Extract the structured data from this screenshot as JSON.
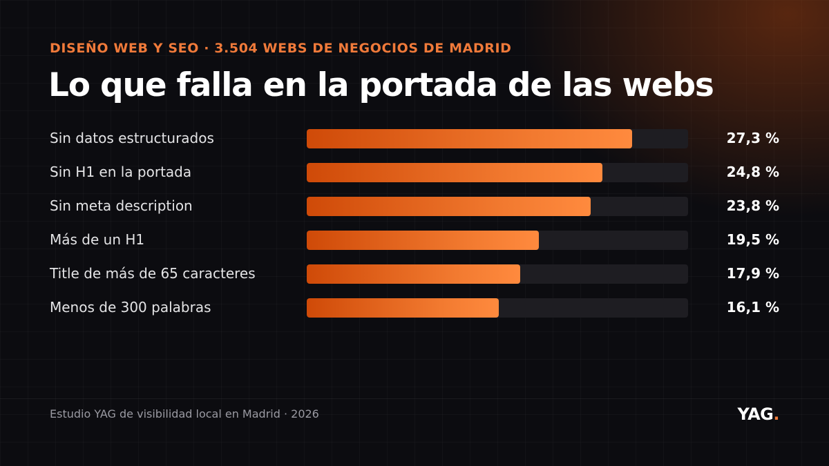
{
  "header": {
    "eyebrow": "DISEÑO WEB Y SEO · 3.504 WEBS DE NEGOCIOS DE MADRID",
    "title": "Lo que falla en la portada de las webs"
  },
  "chart_data": {
    "type": "bar",
    "orientation": "horizontal",
    "title": "Lo que falla en la portada de las webs",
    "subtitle": "DISEÑO WEB Y SEO · 3.504 WEBS DE NEGOCIOS DE MADRID",
    "categories": [
      "Sin datos estructurados",
      "Sin H1 en la portada",
      "Sin meta description",
      "Más de un H1",
      "Title de más de 65 caracteres",
      "Menos de 300 palabras"
    ],
    "values": [
      27.3,
      24.8,
      23.8,
      19.5,
      17.9,
      16.1
    ],
    "value_labels": [
      "27,3 %",
      "24,8 %",
      "23,8 %",
      "19,5 %",
      "17,9 %",
      "16,1 %"
    ],
    "xlim": [
      0,
      32
    ],
    "unit": "%",
    "grid": false,
    "legend": "none"
  },
  "footer": {
    "source": "Estudio YAG de visibilidad local en Madrid · 2026",
    "logo_text": "YAG",
    "logo_dot": "."
  },
  "colors": {
    "accent": "#f07a3a",
    "bar_start": "#cf4a08",
    "bar_end": "#ff8a3e",
    "track": "#1e1d22",
    "background": "#0c0c10"
  }
}
